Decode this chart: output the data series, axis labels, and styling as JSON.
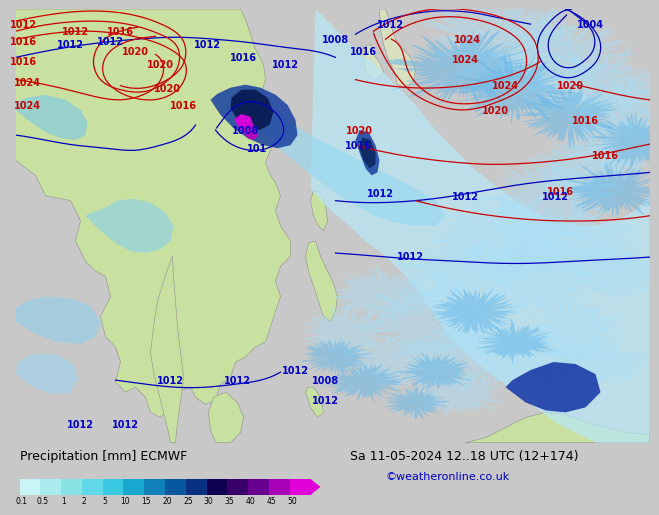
{
  "title_left": "Precipitation [mm] ECMWF",
  "title_right": "Sa 11-05-2024 12..18 UTC (12+174)",
  "credit": "©weatheronline.co.uk",
  "colorbar_labels": [
    "0.1",
    "0.5",
    "1",
    "2",
    "5",
    "10",
    "15",
    "20",
    "25",
    "30",
    "35",
    "40",
    "45",
    "50"
  ],
  "colorbar_colors": [
    "#c8f5f5",
    "#a8ecec",
    "#88e4e4",
    "#60d8e8",
    "#38c8e0",
    "#18a8d0",
    "#1080b8",
    "#0858a0",
    "#083080",
    "#100050",
    "#380068",
    "#680090",
    "#a800b8",
    "#e000d8"
  ],
  "ocean_color": "#e8f0f8",
  "land_left_color": "#c8e0a0",
  "land_right_color": "#d8e0c0",
  "bg_color": "#c8c8c8",
  "bottom_bg": "#f0f0f0",
  "title_color": "#000000",
  "credit_color": "#0000cc",
  "title_fontsize": 9,
  "credit_fontsize": 8,
  "label_fontsize": 7,
  "isobar_fontsize": 7
}
